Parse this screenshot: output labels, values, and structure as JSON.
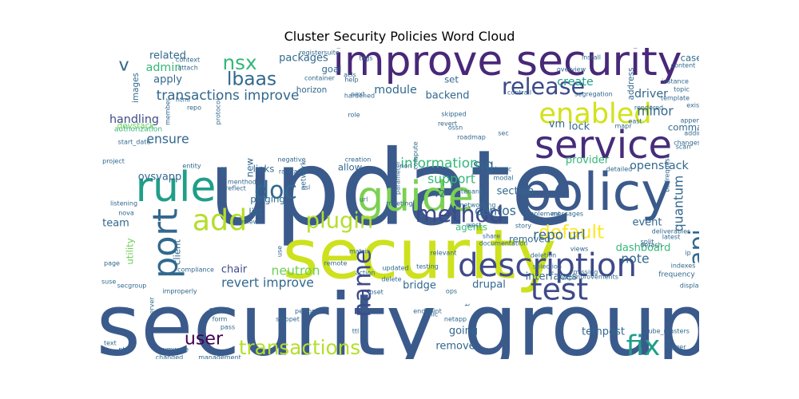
{
  "chart_data": {
    "type": "wordcloud",
    "title": "Cluster Security Policies Word Cloud",
    "palette": [
      "#440154",
      "#482878",
      "#3e4989",
      "#31688e",
      "#26828e",
      "#1f9e89",
      "#35b779",
      "#6ece58",
      "#b5de2b",
      "#fde725"
    ],
    "words": [
      {
        "text": "update",
        "weight": 100,
        "color": "#3b5a8c"
      },
      {
        "text": "security group",
        "weight": 82,
        "color": "#3b5a8c"
      },
      {
        "text": "security",
        "weight": 66,
        "color": "#cde11d"
      },
      {
        "text": "policy",
        "weight": 50,
        "color": "#3b5a8c"
      },
      {
        "text": "improve security",
        "weight": 40,
        "color": "#482878"
      },
      {
        "text": "guide",
        "weight": 40,
        "color": "#7ad151"
      },
      {
        "text": "rule",
        "weight": 40,
        "color": "#1f9e89"
      },
      {
        "text": "service",
        "weight": 37,
        "color": "#472c7a"
      },
      {
        "text": "description",
        "weight": 31,
        "color": "#3e4a89"
      },
      {
        "text": "port",
        "weight": 33,
        "color": "#31688e"
      },
      {
        "text": "test",
        "weight": 29,
        "color": "#3e4a89"
      },
      {
        "text": "add",
        "weight": 28,
        "color": "#b5de2b"
      },
      {
        "text": "enabled",
        "weight": 27,
        "color": "#d2e21b"
      },
      {
        "text": "fix",
        "weight": 27,
        "color": "#1f9e89"
      },
      {
        "text": "release",
        "weight": 22,
        "color": "#3e4a89"
      },
      {
        "text": "plugin",
        "weight": 21,
        "color": "#b5de2b"
      },
      {
        "text": "method",
        "weight": 22,
        "color": "#3e4a89"
      },
      {
        "text": "doc",
        "weight": 23,
        "color": "#31688e"
      },
      {
        "text": "api",
        "weight": 23,
        "color": "#31688e"
      },
      {
        "text": "name",
        "weight": 23,
        "color": "#3e4a89"
      },
      {
        "text": "transactions",
        "weight": 19,
        "color": "#b5de2b"
      },
      {
        "text": "default",
        "weight": 18,
        "color": "#fde725"
      },
      {
        "text": "nsx",
        "weight": 19,
        "color": "#35b779"
      },
      {
        "text": "lbaas",
        "weight": 18,
        "color": "#31688e"
      },
      {
        "text": "user",
        "weight": 17,
        "color": "#440154"
      },
      {
        "text": "v",
        "weight": 17,
        "color": "#31688e"
      },
      {
        "text": "transactions improve",
        "weight": 13,
        "color": "#31688e"
      },
      {
        "text": "sig",
        "weight": 14,
        "color": "#31688e"
      },
      {
        "text": "information",
        "weight": 13,
        "color": "#35b779"
      },
      {
        "text": "repo url",
        "weight": 13,
        "color": "#31688e"
      },
      {
        "text": "revert improve",
        "weight": 12,
        "color": "#31688e"
      },
      {
        "text": "neutron",
        "weight": 12,
        "color": "#6ece58"
      },
      {
        "text": "ensure",
        "weight": 12,
        "color": "#31688e"
      },
      {
        "text": "minor",
        "weight": 12,
        "color": "#31688e"
      },
      {
        "text": "quantum",
        "weight": 12,
        "color": "#31688e"
      },
      {
        "text": "support",
        "weight": 12,
        "color": "#35b779"
      },
      {
        "text": "centos",
        "weight": 12,
        "color": "#31688e"
      },
      {
        "text": "note",
        "weight": 12,
        "color": "#31688e"
      },
      {
        "text": "create",
        "weight": 11,
        "color": "#1f9e89"
      },
      {
        "text": "module",
        "weight": 11,
        "color": "#31688e"
      },
      {
        "text": "handling",
        "weight": 11,
        "color": "#3e4a89"
      },
      {
        "text": "openstack",
        "weight": 11,
        "color": "#31688e"
      },
      {
        "text": "driver",
        "weight": 11,
        "color": "#31688e"
      },
      {
        "text": "admin",
        "weight": 11,
        "color": "#35b779"
      },
      {
        "text": "apply",
        "weight": 10,
        "color": "#31688e"
      },
      {
        "text": "related",
        "weight": 10,
        "color": "#31688e"
      },
      {
        "text": "packages",
        "weight": 10,
        "color": "#31688e"
      },
      {
        "text": "backend",
        "weight": 10,
        "color": "#31688e"
      },
      {
        "text": "provider",
        "weight": 10,
        "color": "#35b779"
      },
      {
        "text": "dashboard",
        "weight": 10,
        "color": "#35b779"
      },
      {
        "text": "ovsvapp",
        "weight": 10,
        "color": "#31688e"
      },
      {
        "text": "remove",
        "weight": 10,
        "color": "#31688e"
      },
      {
        "text": "going",
        "weight": 10,
        "color": "#31688e"
      },
      {
        "text": "tempest",
        "weight": 10,
        "color": "#31688e"
      },
      {
        "text": "interfaces",
        "weight": 10,
        "color": "#31688e"
      },
      {
        "text": "drupal",
        "weight": 10,
        "color": "#31688e"
      },
      {
        "text": "bridge",
        "weight": 10,
        "color": "#31688e"
      },
      {
        "text": "chair",
        "weight": 10,
        "color": "#3e4a89"
      },
      {
        "text": "team",
        "weight": 10,
        "color": "#31688e"
      },
      {
        "text": "vm",
        "weight": 10,
        "color": "#31688e"
      },
      {
        "text": "lock",
        "weight": 10,
        "color": "#31688e"
      },
      {
        "text": "event",
        "weight": 10,
        "color": "#31688e"
      },
      {
        "text": "section",
        "weight": 10,
        "color": "#31688e"
      },
      {
        "text": "agents",
        "weight": 9,
        "color": "#35b779"
      },
      {
        "text": "removed",
        "weight": 9,
        "color": "#31688e"
      },
      {
        "text": "command",
        "weight": 9,
        "color": "#31688e"
      },
      {
        "text": "case",
        "weight": 9,
        "color": "#31688e"
      },
      {
        "text": "goal",
        "weight": 9,
        "color": "#31688e"
      },
      {
        "text": "set",
        "weight": 9,
        "color": "#31688e"
      },
      {
        "text": "allow",
        "weight": 9,
        "color": "#31688e"
      },
      {
        "text": "links",
        "weight": 9,
        "color": "#31688e"
      },
      {
        "text": "pinging",
        "weight": 9,
        "color": "#31688e"
      },
      {
        "text": "list",
        "weight": 9,
        "color": "#31688e"
      },
      {
        "text": "new",
        "weight": 9,
        "color": "#31688e"
      },
      {
        "text": "v2",
        "weight": 9,
        "color": "#31688e"
      },
      {
        "text": "utility",
        "weight": 9,
        "color": "#6ece58"
      },
      {
        "text": "client",
        "weight": 9,
        "color": "#31688e"
      },
      {
        "text": "devstack",
        "weight": 8,
        "color": "#6ece58"
      },
      {
        "text": "images",
        "weight": 8,
        "color": "#31688e"
      },
      {
        "text": "address",
        "weight": 8,
        "color": "#31688e"
      },
      {
        "text": "pod",
        "weight": 8,
        "color": "#31688e"
      },
      {
        "text": "network",
        "weight": 7,
        "color": "#31688e"
      },
      {
        "text": "frequency",
        "weight": 7,
        "color": "#31688e"
      },
      {
        "text": "np",
        "weight": 7,
        "color": "#31688e"
      },
      {
        "text": "register",
        "weight": 6,
        "color": "#31688e"
      },
      {
        "text": "context",
        "weight": 6,
        "color": "#31688e"
      },
      {
        "text": "attach",
        "weight": 6,
        "color": "#31688e"
      },
      {
        "text": "tags",
        "weight": 6,
        "color": "#31688e"
      },
      {
        "text": "suite",
        "weight": 6,
        "color": "#31688e"
      },
      {
        "text": "horizon",
        "weight": 8,
        "color": "#31688e"
      },
      {
        "text": "container",
        "weight": 6,
        "color": "#31688e"
      },
      {
        "text": "hardened",
        "weight": 6,
        "color": "#31688e"
      },
      {
        "text": "acls",
        "weight": 6,
        "color": "#31688e"
      },
      {
        "text": "help",
        "weight": 6,
        "color": "#31688e"
      },
      {
        "text": "html",
        "weight": 6,
        "color": "#31688e"
      },
      {
        "text": "member",
        "weight": 6,
        "color": "#31688e"
      },
      {
        "text": "repo",
        "weight": 6,
        "color": "#31688e"
      },
      {
        "text": "protocol",
        "weight": 6,
        "color": "#31688e"
      },
      {
        "text": "authorization",
        "weight": 7,
        "color": "#35b779"
      },
      {
        "text": "start_date",
        "weight": 6,
        "color": "#31688e"
      },
      {
        "text": "project",
        "weight": 6,
        "color": "#31688e"
      },
      {
        "text": "entity",
        "weight": 6,
        "color": "#31688e"
      },
      {
        "text": "htk",
        "weight": 6,
        "color": "#31688e"
      },
      {
        "text": "menthods",
        "weight": 6,
        "color": "#31688e"
      },
      {
        "text": "reflect",
        "weight": 6,
        "color": "#31688e"
      },
      {
        "text": "listening",
        "weight": 6,
        "color": "#31688e"
      },
      {
        "text": "nova",
        "weight": 6,
        "color": "#31688e"
      },
      {
        "text": "review",
        "weight": 6,
        "color": "#31688e"
      },
      {
        "text": "page",
        "weight": 6,
        "color": "#31688e"
      },
      {
        "text": "compliance",
        "weight": 6,
        "color": "#31688e"
      },
      {
        "text": "suse",
        "weight": 6,
        "color": "#31688e"
      },
      {
        "text": "secgroup",
        "weight": 6,
        "color": "#31688e"
      },
      {
        "text": "improperly",
        "weight": 6,
        "color": "#31688e"
      },
      {
        "text": "server",
        "weight": 6,
        "color": "#31688e"
      },
      {
        "text": "output",
        "weight": 6,
        "color": "#31688e"
      },
      {
        "text": "form",
        "weight": 6,
        "color": "#31688e"
      },
      {
        "text": "pass",
        "weight": 6,
        "color": "#31688e"
      },
      {
        "text": "text",
        "weight": 6,
        "color": "#31688e"
      },
      {
        "text": "vmware",
        "weight": 6,
        "color": "#31688e"
      },
      {
        "text": "pt1",
        "weight": 6,
        "color": "#31688e"
      },
      {
        "text": "changed",
        "weight": 6,
        "color": "#31688e"
      },
      {
        "text": "management",
        "weight": 6,
        "color": "#31688e"
      },
      {
        "text": "role",
        "weight": 6,
        "color": "#31688e"
      },
      {
        "text": "next",
        "weight": 6,
        "color": "#31688e"
      },
      {
        "text": "negative",
        "weight": 6,
        "color": "#31688e"
      },
      {
        "text": "creation",
        "weight": 6,
        "color": "#31688e"
      },
      {
        "text": "ra",
        "weight": 6,
        "color": "#31688e"
      },
      {
        "text": "tasks",
        "weight": 6,
        "color": "#31688e"
      },
      {
        "text": "ref",
        "weight": 6,
        "color": "#31688e"
      },
      {
        "text": "ssl",
        "weight": 6,
        "color": "#31688e"
      },
      {
        "text": "url",
        "weight": 6,
        "color": "#31688e"
      },
      {
        "text": "matrix",
        "weight": 6,
        "color": "#31688e"
      },
      {
        "text": "use",
        "weight": 6,
        "color": "#31688e"
      },
      {
        "text": "remote",
        "weight": 6,
        "color": "#31688e"
      },
      {
        "text": "updated",
        "weight": 6,
        "color": "#31688e"
      },
      {
        "text": "action",
        "weight": 6,
        "color": "#31688e"
      },
      {
        "text": "delete",
        "weight": 6,
        "color": "#31688e"
      },
      {
        "text": "ipset",
        "weight": 6,
        "color": "#31688e"
      },
      {
        "text": "ops",
        "weight": 6,
        "color": "#31688e"
      },
      {
        "text": "t",
        "weight": 6,
        "color": "#31688e"
      },
      {
        "text": "perform",
        "weight": 6,
        "color": "#31688e"
      },
      {
        "text": "snippet",
        "weight": 6,
        "color": "#31688e"
      },
      {
        "text": "ttl",
        "weight": 6,
        "color": "#31688e"
      },
      {
        "text": "endpoint",
        "weight": 6,
        "color": "#31688e"
      },
      {
        "text": "netapp",
        "weight": 6,
        "color": "#31688e"
      },
      {
        "text": "vnic",
        "weight": 6,
        "color": "#31688e"
      },
      {
        "text": "testing",
        "weight": 6,
        "color": "#31688e"
      },
      {
        "text": "relevant",
        "weight": 6,
        "color": "#31688e"
      },
      {
        "text": "parameter",
        "weight": 6,
        "color": "#31688e"
      },
      {
        "text": "compute",
        "weight": 6,
        "color": "#31688e"
      },
      {
        "text": "skipped",
        "weight": 6,
        "color": "#31688e"
      },
      {
        "text": "revert",
        "weight": 6,
        "color": "#31688e"
      },
      {
        "text": "ossn",
        "weight": 6,
        "color": "#31688e"
      },
      {
        "text": "non",
        "weight": 6,
        "color": "#31688e"
      },
      {
        "text": "sec",
        "weight": 6,
        "color": "#31688e"
      },
      {
        "text": "roadmap",
        "weight": 6,
        "color": "#31688e"
      },
      {
        "text": "contrail",
        "weight": 6,
        "color": "#31688e"
      },
      {
        "text": "overview",
        "weight": 6,
        "color": "#31688e"
      },
      {
        "text": "segregation",
        "weight": 6,
        "color": "#31688e"
      },
      {
        "text": "mapr",
        "weight": 6,
        "color": "#31688e"
      },
      {
        "text": "east",
        "weight": 6,
        "color": "#31688e"
      },
      {
        "text": "rendered",
        "weight": 6,
        "color": "#31688e"
      },
      {
        "text": "install",
        "weight": 6,
        "color": "#31688e"
      },
      {
        "text": "content",
        "weight": 6,
        "color": "#31688e"
      },
      {
        "text": "instance",
        "weight": 6,
        "color": "#31688e"
      },
      {
        "text": "topic",
        "weight": 6,
        "color": "#31688e"
      },
      {
        "text": "template",
        "weight": 6,
        "color": "#31688e"
      },
      {
        "text": "existing",
        "weight": 6,
        "color": "#31688e"
      },
      {
        "text": "appendix",
        "weight": 6,
        "color": "#31688e"
      },
      {
        "text": "adding",
        "weight": 6,
        "color": "#31688e"
      },
      {
        "text": "changes",
        "weight": 6,
        "color": "#31688e"
      },
      {
        "text": "scan",
        "weight": 6,
        "color": "#31688e"
      },
      {
        "text": "detailed",
        "weight": 6,
        "color": "#31688e"
      },
      {
        "text": "badrequest",
        "weight": 6,
        "color": "#31688e"
      },
      {
        "text": "ipsec",
        "weight": 6,
        "color": "#31688e"
      },
      {
        "text": "modal",
        "weight": 6,
        "color": "#31688e"
      },
      {
        "text": "tenant",
        "weight": 6,
        "color": "#31688e"
      },
      {
        "text": "networking",
        "weight": 6,
        "color": "#31688e"
      },
      {
        "text": "messages",
        "weight": 6,
        "color": "#31688e"
      },
      {
        "text": "implement",
        "weight": 6,
        "color": "#31688e"
      },
      {
        "text": "west",
        "weight": 6,
        "color": "#31688e"
      },
      {
        "text": "story",
        "weight": 6,
        "color": "#31688e"
      },
      {
        "text": "share",
        "weight": 6,
        "color": "#31688e"
      },
      {
        "text": "documentation",
        "weight": 6,
        "color": "#31688e"
      },
      {
        "text": "views",
        "weight": 6,
        "color": "#31688e"
      },
      {
        "text": "deletion",
        "weight": 6,
        "color": "#31688e"
      },
      {
        "text": "selection",
        "weight": 6,
        "color": "#31688e"
      },
      {
        "text": "missing",
        "weight": 6,
        "color": "#31688e"
      },
      {
        "text": "wip",
        "weight": 6,
        "color": "#31688e"
      },
      {
        "text": "improvements",
        "weight": 6,
        "color": "#31688e"
      },
      {
        "text": "deliverables",
        "weight": 6,
        "color": "#31688e"
      },
      {
        "text": "latest",
        "weight": 6,
        "color": "#31688e"
      },
      {
        "text": "split",
        "weight": 6,
        "color": "#31688e"
      },
      {
        "text": "detach",
        "weight": 6,
        "color": "#31688e"
      },
      {
        "text": "ip",
        "weight": 6,
        "color": "#31688e"
      },
      {
        "text": "indexes",
        "weight": 6,
        "color": "#31688e"
      },
      {
        "text": "display",
        "weight": 6,
        "color": "#31688e"
      },
      {
        "text": "email",
        "weight": 6,
        "color": "#31688e"
      },
      {
        "text": "kube_masters",
        "weight": 6,
        "color": "#31688e"
      },
      {
        "text": "trigger",
        "weight": 6,
        "color": "#31688e"
      },
      {
        "text": "meeting",
        "weight": 6,
        "color": "#31688e"
      }
    ]
  }
}
